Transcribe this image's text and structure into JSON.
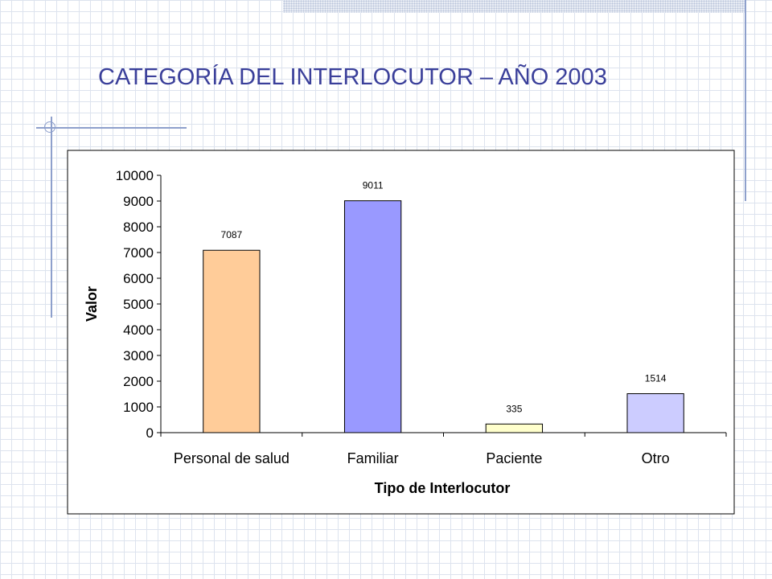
{
  "slide": {
    "title": "CATEGORÍA DEL INTERLOCUTOR – AÑO 2003"
  },
  "colors": {
    "title": "#3a3f9a",
    "decoration": "#8ea0cc"
  },
  "chart_data": {
    "type": "bar",
    "title": "",
    "xlabel": "Tipo de Interlocutor",
    "ylabel": "Valor",
    "ylim": [
      0,
      10000
    ],
    "yticks": [
      0,
      1000,
      2000,
      3000,
      4000,
      5000,
      6000,
      7000,
      8000,
      9000,
      10000
    ],
    "grid": false,
    "legend": "none",
    "categories": [
      "Personal de salud",
      "Familiar",
      "Paciente",
      "Otro"
    ],
    "values": [
      7087,
      9011,
      335,
      1514
    ],
    "bar_colors": [
      "#ffcc99",
      "#9999ff",
      "#ffffcc",
      "#ccccff"
    ]
  }
}
